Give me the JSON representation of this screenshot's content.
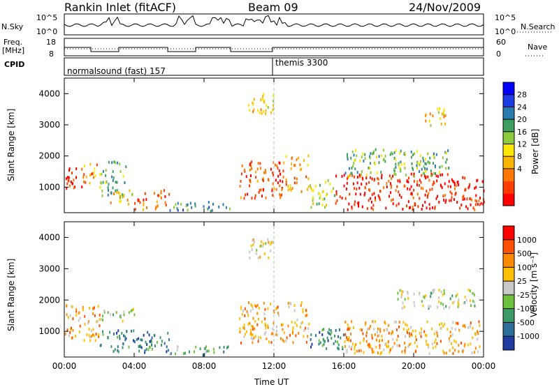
{
  "header": {
    "title": "Rankin Inlet (fitACF)",
    "beam": "Beam 09",
    "date": "24/Nov/2009"
  },
  "panels": {
    "nsky_label": "N.Sky",
    "nsearch_label": "N.Search",
    "nsky_ticks": [
      "10^5",
      "10^0"
    ],
    "nsearch_ticks": [
      "10^5",
      "10^0"
    ],
    "freq_label_1": "Freq.",
    "freq_label_2": "[MHz]",
    "freq_ticks": [
      "18",
      "8"
    ],
    "nave_label": "Nave",
    "nave_ticks": [
      "60",
      "0"
    ],
    "cpid_label": "CPID",
    "cpid_1": "normalsound (fast) 157",
    "cpid_2": "themis 3300"
  },
  "chart_data": [
    {
      "type": "heatmap",
      "name": "power",
      "xlabel": "",
      "ylabel": "Slant Range [km]",
      "x_ticks": [
        "00:00",
        "04:00",
        "08:00",
        "12:00",
        "16:00",
        "20:00",
        "00:00"
      ],
      "y_ticks": [
        "1000",
        "2000",
        "3000",
        "4000"
      ],
      "xlim": [
        0,
        24
      ],
      "ylim": [
        180,
        4500
      ],
      "colorbar": {
        "label": "Power [dB]",
        "ticks": [
          "28",
          "24",
          "20",
          "16",
          "12",
          "8",
          "4"
        ],
        "colors": [
          "#ff0000",
          "#ff3c00",
          "#ff7800",
          "#ffb400",
          "#ffe600",
          "#8ccc3c",
          "#3ea060",
          "#2a7ab0",
          "#1e3ce6",
          "#0000ff"
        ]
      },
      "regions": [
        {
          "t0": 0.0,
          "t1": 1.0,
          "r0": 900,
          "r1": 1600,
          "v": 1
        },
        {
          "t0": 1.0,
          "t1": 2.0,
          "r0": 1100,
          "r1": 1800,
          "v": 3
        },
        {
          "t0": 2.0,
          "t1": 3.5,
          "r0": 700,
          "r1": 1800,
          "v": 6
        },
        {
          "t0": 2.5,
          "t1": 4.0,
          "r0": 400,
          "r1": 900,
          "v": 4
        },
        {
          "t0": 4.0,
          "t1": 6.0,
          "r0": 250,
          "r1": 900,
          "v": 2
        },
        {
          "t0": 6.0,
          "t1": 9.5,
          "r0": 200,
          "r1": 500,
          "v": 7
        },
        {
          "t0": 10.0,
          "t1": 12.5,
          "r0": 600,
          "r1": 1800,
          "v": 2
        },
        {
          "t0": 12.5,
          "t1": 14.0,
          "r0": 800,
          "r1": 2000,
          "v": 3
        },
        {
          "t0": 14.0,
          "t1": 15.5,
          "r0": 300,
          "r1": 1200,
          "v": 5
        },
        {
          "t0": 15.5,
          "t1": 24.0,
          "r0": 250,
          "r1": 1400,
          "v": 1
        },
        {
          "t0": 16.0,
          "t1": 22.0,
          "r0": 1300,
          "r1": 2200,
          "v": 6
        },
        {
          "t0": 10.5,
          "t1": 12.0,
          "r0": 3300,
          "r1": 4000,
          "v": 4
        },
        {
          "t0": 20.5,
          "t1": 21.8,
          "r0": 2900,
          "r1": 3500,
          "v": 4
        }
      ]
    },
    {
      "type": "heatmap",
      "name": "velocity",
      "xlabel": "Time UT",
      "ylabel": "Slant Range [km]",
      "x_ticks": [
        "00:00",
        "04:00",
        "08:00",
        "12:00",
        "16:00",
        "20:00",
        "00:00"
      ],
      "y_ticks": [
        "1000",
        "2000",
        "3000",
        "4000"
      ],
      "xlim": [
        0,
        24
      ],
      "ylim": [
        180,
        4500
      ],
      "colorbar": {
        "label": "Velocity [m s⁻¹]",
        "ticks": [
          "1000",
          "500",
          "100",
          "25",
          "-25",
          "-100",
          "-500",
          "-1000"
        ],
        "colors": [
          "#1e3ca0",
          "#2e6e9a",
          "#3c9a6a",
          "#6cc23a",
          "#c8c8c8",
          "#ffc000",
          "#ff8a00",
          "#ff5000",
          "#ff0000"
        ]
      },
      "regions": [
        {
          "t0": 0.0,
          "t1": 2.0,
          "r0": 600,
          "r1": 1800,
          "v": 6
        },
        {
          "t0": 2.0,
          "t1": 4.0,
          "r0": 1300,
          "r1": 1700,
          "v": 4
        },
        {
          "t0": 2.0,
          "t1": 6.0,
          "r0": 300,
          "r1": 1000,
          "v": 2
        },
        {
          "t0": 6.0,
          "t1": 9.5,
          "r0": 200,
          "r1": 500,
          "v": 3
        },
        {
          "t0": 10.0,
          "t1": 14.0,
          "r0": 600,
          "r1": 1900,
          "v": 6
        },
        {
          "t0": 14.0,
          "t1": 16.0,
          "r0": 400,
          "r1": 1100,
          "v": 2
        },
        {
          "t0": 16.0,
          "t1": 24.0,
          "r0": 250,
          "r1": 1300,
          "v": 6
        },
        {
          "t0": 19.0,
          "t1": 23.5,
          "r0": 1700,
          "r1": 2300,
          "v": 4
        },
        {
          "t0": 10.5,
          "t1": 12.0,
          "r0": 3300,
          "r1": 4000,
          "v": 5
        }
      ]
    }
  ]
}
